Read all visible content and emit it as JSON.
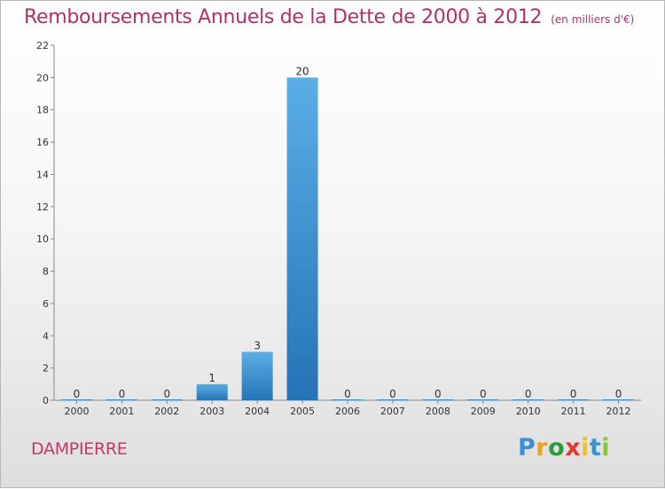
{
  "chart_data": {
    "type": "bar",
    "title": "Remboursements Annuels de la Dette de 2000 à 2012",
    "subtitle": "(en milliers d'€)",
    "categories": [
      "2000",
      "2001",
      "2002",
      "2003",
      "2004",
      "2005",
      "2006",
      "2007",
      "2008",
      "2009",
      "2010",
      "2011",
      "2012"
    ],
    "values": [
      0,
      0,
      0,
      1,
      3,
      20,
      0,
      0,
      0,
      0,
      0,
      0,
      0
    ],
    "value_labels": [
      "0",
      "0",
      "0",
      "1",
      "3",
      "20",
      "0",
      "0",
      "0",
      "0",
      "0",
      "0",
      "0"
    ],
    "yticks": [
      0,
      2,
      4,
      6,
      8,
      10,
      12,
      14,
      16,
      18,
      20,
      22
    ],
    "ylim": [
      0,
      22
    ],
    "xlabel": "",
    "ylabel": "",
    "grid": false,
    "bar_color_top": "#5aaee6",
    "bar_color_bottom": "#2573b5"
  },
  "commune": "DAMPIERRE",
  "brand": {
    "letters": [
      "P",
      "r",
      "o",
      "x",
      "i",
      "t",
      "i"
    ],
    "colors": [
      "#3a8fd6",
      "#f0a020",
      "#2f9a3c",
      "#e23b2e",
      "#f0c020",
      "#3a8fd6",
      "#8cc63f"
    ]
  }
}
